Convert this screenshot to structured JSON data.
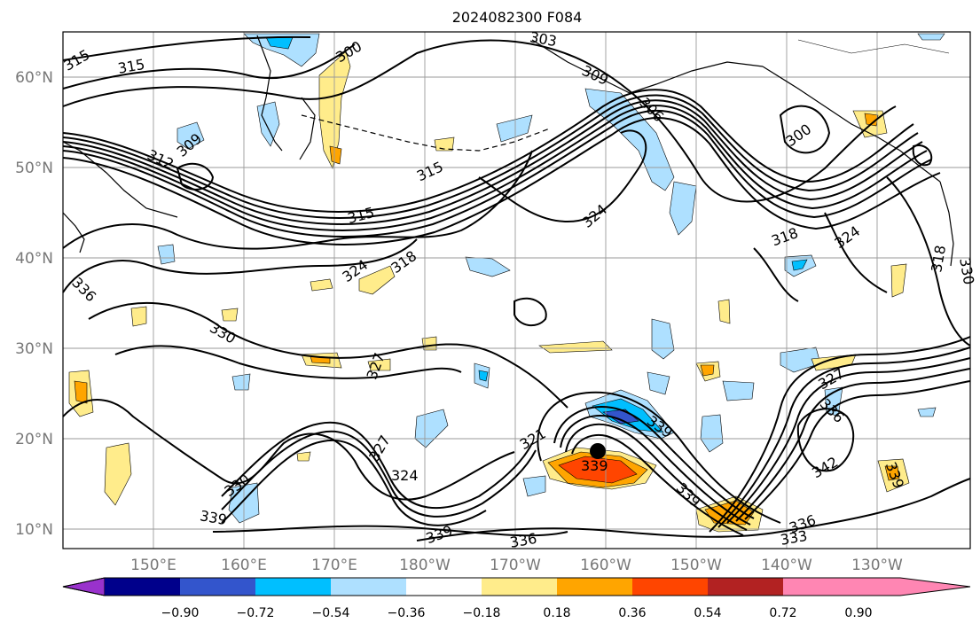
{
  "map": {
    "title": "2024082300 F084",
    "lat_labels": [
      "60°N",
      "50°N",
      "40°N",
      "30°N",
      "20°N",
      "10°N"
    ],
    "lon_labels": [
      "150°E",
      "160°E",
      "170°E",
      "180°W",
      "170°W",
      "160°W",
      "150°W",
      "140°W",
      "130°W"
    ],
    "contour_labels": [
      "315",
      "315",
      "300",
      "303",
      "309",
      "306",
      "309",
      "312",
      "315",
      "315",
      "300",
      "324",
      "324",
      "318",
      "318",
      "324",
      "336",
      "330",
      "327",
      "327",
      "321",
      "324",
      "330",
      "339",
      "339",
      "339",
      "336",
      "333",
      "336",
      "339",
      "342",
      "336",
      "327",
      "318",
      "339",
      "339",
      "330"
    ],
    "marker": "storm-center"
  },
  "colorbar": {
    "ticks": [
      "−0.90",
      "−0.72",
      "−0.54",
      "−0.36",
      "−0.18",
      "0.18",
      "0.36",
      "0.54",
      "0.72",
      "0.90"
    ],
    "colors": [
      "#9932cc",
      "#00008b",
      "#3355cc",
      "#00bfff",
      "#aee0ff",
      "#ffffff",
      "#ffec8b",
      "#ffa500",
      "#ff4500",
      "#b22222",
      "#ff86b3"
    ]
  }
}
